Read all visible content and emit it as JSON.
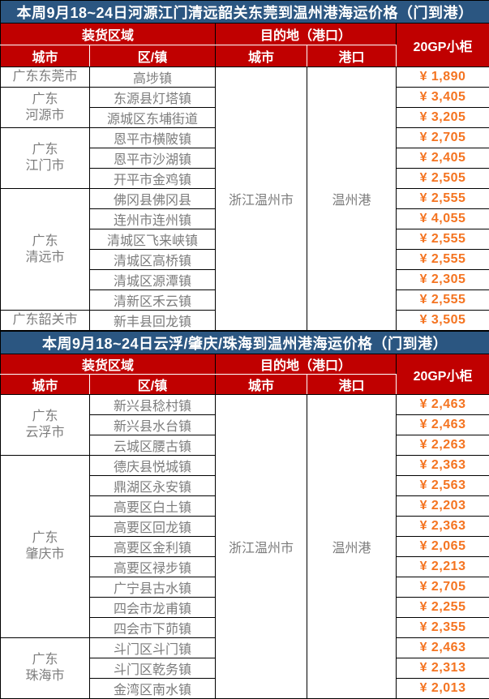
{
  "colors": {
    "title_bg": "#2B5681",
    "header_bg": "#C00000",
    "price_text": "#F47421",
    "body_text": "#7C7C7C",
    "grid": "#000000"
  },
  "headers": {
    "load_region": "装货区域",
    "city": "城市",
    "district": "区/镇",
    "destination": "目的地（港口）",
    "dest_city": "城市",
    "dest_port": "港口",
    "container": "20GP小柜"
  },
  "tables": [
    {
      "title": "本周9月18~24日河源江门清远韶关东莞到温州港海运价格（门到港）",
      "dest_city": "浙江温州市",
      "dest_port": "温州港",
      "groups": [
        {
          "city": "广东东莞市",
          "rows": [
            {
              "district": "高埗镇",
              "price": "¥ 1,890"
            }
          ]
        },
        {
          "city": "广东\n河源市",
          "rows": [
            {
              "district": "东源县灯塔镇",
              "price": "¥ 3,405"
            },
            {
              "district": "源城区东埔街道",
              "price": "¥ 3,205"
            }
          ]
        },
        {
          "city": "广东\n江门市",
          "rows": [
            {
              "district": "恩平市横陂镇",
              "price": "¥ 2,705"
            },
            {
              "district": "恩平市沙湖镇",
              "price": "¥ 2,405"
            },
            {
              "district": "开平市金鸡镇",
              "price": "¥ 2,505"
            }
          ]
        },
        {
          "city": "广东\n清远市",
          "rows": [
            {
              "district": "佛冈县佛冈县",
              "price": "¥ 2,555"
            },
            {
              "district": "连州市连州镇",
              "price": "¥ 4,055"
            },
            {
              "district": "清城区飞来峡镇",
              "price": "¥ 2,555"
            },
            {
              "district": "清城区高桥镇",
              "price": "¥ 2,555"
            },
            {
              "district": "清城区源潭镇",
              "price": "¥ 2,305"
            },
            {
              "district": "清新区禾云镇",
              "price": "¥ 2,555"
            }
          ]
        },
        {
          "city": "广东韶关市",
          "rows": [
            {
              "district": "新丰县回龙镇",
              "price": "¥ 3,505"
            }
          ]
        }
      ]
    },
    {
      "title": "本周9月18~24日云浮/肇庆/珠海到温州港海运价格（门到港）",
      "dest_city": "浙江温州市",
      "dest_port": "温州港",
      "groups": [
        {
          "city": "广东\n云浮市",
          "rows": [
            {
              "district": "新兴县稔村镇",
              "price": "¥ 2,463"
            },
            {
              "district": "新兴县水台镇",
              "price": "¥ 2,463"
            },
            {
              "district": "云城区腰古镇",
              "price": "¥ 2,263"
            }
          ]
        },
        {
          "city": "广东\n肇庆市",
          "rows": [
            {
              "district": "德庆县悦城镇",
              "price": "¥ 2,363"
            },
            {
              "district": "鼎湖区永安镇",
              "price": "¥ 2,563"
            },
            {
              "district": "高要区白土镇",
              "price": "¥ 2,203"
            },
            {
              "district": "高要区回龙镇",
              "price": "¥ 2,363"
            },
            {
              "district": "高要区金利镇",
              "price": "¥ 2,065"
            },
            {
              "district": "高要区禄步镇",
              "price": "¥ 2,213"
            },
            {
              "district": "广宁县古水镇",
              "price": "¥ 2,705"
            },
            {
              "district": "四会市龙甫镇",
              "price": "¥ 2,255"
            },
            {
              "district": "四会市下茆镇",
              "price": "¥ 2,355"
            }
          ]
        },
        {
          "city": "广东\n珠海市",
          "rows": [
            {
              "district": "斗门区斗门镇",
              "price": "¥ 2,463"
            },
            {
              "district": "斗门区乾务镇",
              "price": "¥ 2,313"
            },
            {
              "district": "金湾区南水镇",
              "price": "¥ 2,013"
            }
          ]
        }
      ]
    }
  ]
}
